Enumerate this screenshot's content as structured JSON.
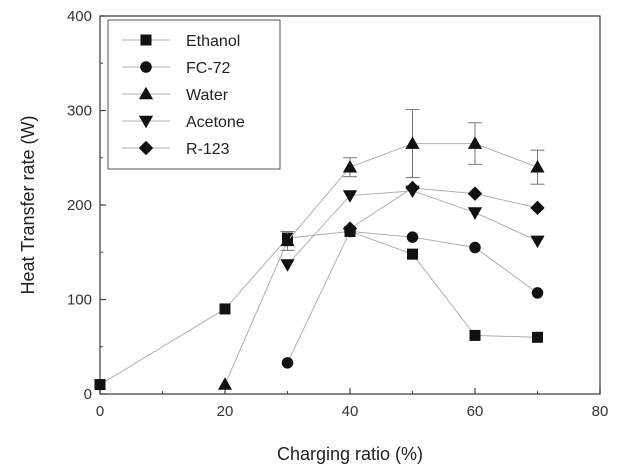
{
  "chart_data": {
    "type": "scatter",
    "xlabel": "Charging ratio (%)",
    "ylabel": "Heat Transfer rate (W)",
    "xlim": [
      0,
      80
    ],
    "ylim": [
      0,
      400
    ],
    "xticks": [
      0,
      20,
      40,
      60,
      80
    ],
    "yticks": [
      0,
      100,
      200,
      300,
      400
    ],
    "xtick_labels": [
      "0",
      "20",
      "40",
      "60",
      "80"
    ],
    "ytick_labels": [
      "0",
      "100",
      "200",
      "300",
      "400"
    ],
    "grid": false,
    "legend_position": "top-left",
    "series": [
      {
        "name": "Ethanol",
        "marker": "square",
        "x": [
          0,
          20,
          30,
          40,
          50,
          60,
          70
        ],
        "y": [
          10,
          90,
          165,
          172,
          148,
          62,
          60
        ]
      },
      {
        "name": "FC-72",
        "marker": "circle",
        "x": [
          30,
          40,
          50,
          60,
          70
        ],
        "y": [
          33,
          172,
          166,
          155,
          107
        ]
      },
      {
        "name": "Water",
        "marker": "triangle-up",
        "x": [
          20,
          30,
          40,
          50,
          60,
          70
        ],
        "y": [
          10,
          162,
          240,
          265,
          265,
          240
        ],
        "error": [
          0,
          10,
          10,
          36,
          22,
          18
        ]
      },
      {
        "name": "Acetone",
        "marker": "triangle-down",
        "x": [
          30,
          40,
          50,
          60,
          70
        ],
        "y": [
          137,
          210,
          215,
          192,
          162
        ]
      },
      {
        "name": "R-123",
        "marker": "diamond",
        "x": [
          40,
          50,
          60,
          70
        ],
        "y": [
          175,
          218,
          212,
          197
        ]
      }
    ]
  }
}
